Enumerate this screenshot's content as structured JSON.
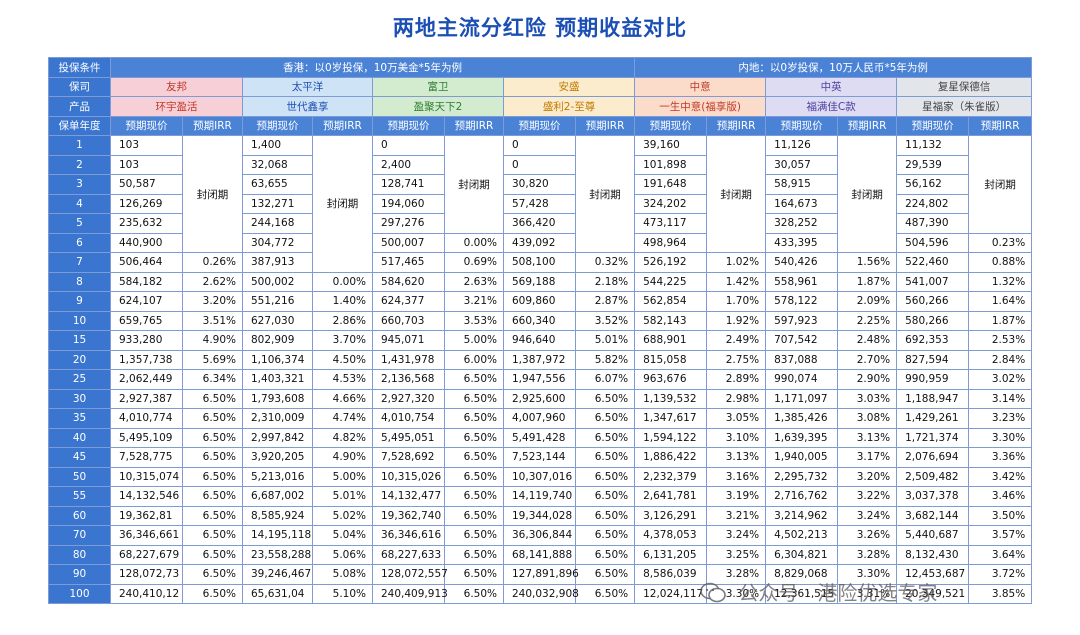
{
  "title": "两地主流分红险  预期收益对比",
  "labels": {
    "condition": "投保条件",
    "insurer": "保司",
    "product": "产品",
    "year": "保单年度"
  },
  "conditions": {
    "hk": "香港：以0岁投保，10万美金*5年为例",
    "mainland": "内地：以0岁投保，10万人民币*5年为例"
  },
  "insurers": [
    "友邦",
    "太平洋",
    "富卫",
    "安盛",
    "中意",
    "中英",
    "复星保德信"
  ],
  "products": [
    "环宇盈活",
    "世代鑫享",
    "盈聚天下2",
    "盛利2-至尊",
    "一生中意(福享版)",
    "福满佳C款",
    "星福家（朱雀版）"
  ],
  "subheaders": {
    "value": "预期现价",
    "irr": "预期IRR"
  },
  "sealed_text": "封闭期",
  "years": [
    "1",
    "2",
    "3",
    "4",
    "5",
    "6",
    "7",
    "8",
    "9",
    "10",
    "15",
    "20",
    "25",
    "30",
    "35",
    "40",
    "45",
    "50",
    "55",
    "60",
    "70",
    "80",
    "90",
    "100"
  ],
  "values": {
    "aia": [
      "103",
      "103",
      "50,587",
      "126,269",
      "235,632",
      "440,900",
      "506,464",
      "584,182",
      "624,107",
      "659,765",
      "933,280",
      "1,357,738",
      "2,062,449",
      "2,927,387",
      "4,010,774",
      "5,495,109",
      "7,528,775",
      "10,315,074",
      "14,132,546",
      "19,362,81",
      "36,346,661",
      "68,227,679",
      "128,072,73",
      "240,410,12"
    ],
    "cpic": [
      "1,400",
      "32,068",
      "63,655",
      "132,271",
      "244,168",
      "304,772",
      "387,913",
      "500,002",
      "551,216",
      "627,030",
      "802,909",
      "1,106,374",
      "1,403,321",
      "1,793,608",
      "2,310,009",
      "2,997,842",
      "3,920,205",
      "5,213,016",
      "6,687,002",
      "8,585,924",
      "14,195,118",
      "23,558,288",
      "39,246,467",
      "65,631,04"
    ],
    "fwd": [
      "0",
      "2,400",
      "128,741",
      "194,060",
      "297,276",
      "500,007",
      "517,465",
      "584,620",
      "624,377",
      "660,703",
      "945,071",
      "1,431,978",
      "2,136,568",
      "2,927,320",
      "4,010,754",
      "5,495,051",
      "7,528,692",
      "10,315,026",
      "14,132,477",
      "19,362,740",
      "36,346,616",
      "68,227,633",
      "128,072,557",
      "240,409,913"
    ],
    "axa": [
      "0",
      "0",
      "30,820",
      "57,428",
      "366,420",
      "439,092",
      "508,100",
      "569,188",
      "609,860",
      "660,340",
      "946,640",
      "1,387,972",
      "1,947,556",
      "2,925,600",
      "4,007,960",
      "5,491,428",
      "7,523,144",
      "10,307,016",
      "14,119,740",
      "19,344,028",
      "36,306,844",
      "68,141,888",
      "127,891,896",
      "240,032,908"
    ],
    "generali": [
      "39,160",
      "101,898",
      "191,648",
      "324,202",
      "473,117",
      "498,964",
      "526,192",
      "544,225",
      "562,854",
      "582,143",
      "688,901",
      "815,058",
      "963,676",
      "1,139,532",
      "1,347,617",
      "1,594,122",
      "1,886,422",
      "2,232,379",
      "2,641,781",
      "3,126,291",
      "4,378,053",
      "6,131,205",
      "8,586,039",
      "12,024,117"
    ],
    "aviva": [
      "11,126",
      "30,057",
      "58,915",
      "164,673",
      "328,252",
      "433,395",
      "540,426",
      "558,961",
      "578,122",
      "597,923",
      "707,542",
      "837,088",
      "990,074",
      "1,171,097",
      "1,385,426",
      "1,639,395",
      "1,940,005",
      "2,295,732",
      "2,716,762",
      "3,214,962",
      "4,502,213",
      "6,304,821",
      "8,829,068",
      "12,361,515"
    ],
    "pramerica": [
      "11,132",
      "29,539",
      "56,162",
      "224,802",
      "487,390",
      "504,596",
      "522,460",
      "541,007",
      "560,266",
      "580,266",
      "692,353",
      "827,594",
      "990,959",
      "1,188,947",
      "1,429,261",
      "1,721,374",
      "2,076,694",
      "2,509,482",
      "3,037,378",
      "3,682,144",
      "5,440,687",
      "8,132,430",
      "12,453,687",
      "20,349,521"
    ]
  },
  "irr": {
    "aia": [
      "",
      "",
      "",
      "",
      "",
      "",
      "0.26%",
      "2.62%",
      "3.20%",
      "3.51%",
      "4.90%",
      "5.69%",
      "6.34%",
      "6.50%",
      "6.50%",
      "6.50%",
      "6.50%",
      "6.50%",
      "6.50%",
      "6.50%",
      "6.50%",
      "6.50%",
      "6.50%",
      "6.50%"
    ],
    "cpic": [
      "",
      "",
      "",
      "",
      "",
      "",
      "",
      "0.00%",
      "1.40%",
      "2.86%",
      "3.70%",
      "4.50%",
      "4.53%",
      "4.66%",
      "4.74%",
      "4.82%",
      "4.90%",
      "5.00%",
      "5.01%",
      "5.02%",
      "5.04%",
      "5.06%",
      "5.08%",
      "5.10%"
    ],
    "fwd": [
      "",
      "",
      "",
      "",
      "",
      "0.00%",
      "0.69%",
      "2.63%",
      "3.21%",
      "3.53%",
      "5.00%",
      "6.00%",
      "6.50%",
      "6.50%",
      "6.50%",
      "6.50%",
      "6.50%",
      "6.50%",
      "6.50%",
      "6.50%",
      "6.50%",
      "6.50%",
      "6.50%",
      "6.50%"
    ],
    "axa": [
      "",
      "",
      "",
      "",
      "",
      "",
      "0.32%",
      "2.18%",
      "2.87%",
      "3.52%",
      "5.01%",
      "5.82%",
      "6.07%",
      "6.50%",
      "6.50%",
      "6.50%",
      "6.50%",
      "6.50%",
      "6.50%",
      "6.50%",
      "6.50%",
      "6.50%",
      "6.50%",
      "6.50%"
    ],
    "generali": [
      "",
      "",
      "",
      "",
      "",
      "",
      "1.02%",
      "1.42%",
      "1.70%",
      "1.92%",
      "2.49%",
      "2.75%",
      "2.89%",
      "2.98%",
      "3.05%",
      "3.10%",
      "3.13%",
      "3.16%",
      "3.19%",
      "3.21%",
      "3.24%",
      "3.25%",
      "3.28%",
      "3.30%"
    ],
    "aviva": [
      "",
      "",
      "",
      "",
      "",
      "",
      "1.56%",
      "1.87%",
      "2.09%",
      "2.25%",
      "2.48%",
      "2.70%",
      "2.90%",
      "3.03%",
      "3.08%",
      "3.13%",
      "3.17%",
      "3.20%",
      "3.22%",
      "3.24%",
      "3.26%",
      "3.28%",
      "3.30%",
      "3.31%"
    ],
    "pramerica": [
      "",
      "",
      "",
      "",
      "",
      "0.23%",
      "0.88%",
      "1.32%",
      "1.64%",
      "1.87%",
      "2.53%",
      "2.84%",
      "3.02%",
      "3.14%",
      "3.23%",
      "3.30%",
      "3.36%",
      "3.42%",
      "3.46%",
      "3.50%",
      "3.57%",
      "3.64%",
      "3.72%",
      "3.85%"
    ]
  },
  "sealed_rows": {
    "aia": 6,
    "cpic": 7,
    "fwd": 5,
    "axa": 6,
    "generali": 6,
    "aviva": 6,
    "pramerica": 5
  },
  "watermark": "公众号 · 港险优选专家",
  "icons": {
    "watermark": "wechat-icon"
  }
}
